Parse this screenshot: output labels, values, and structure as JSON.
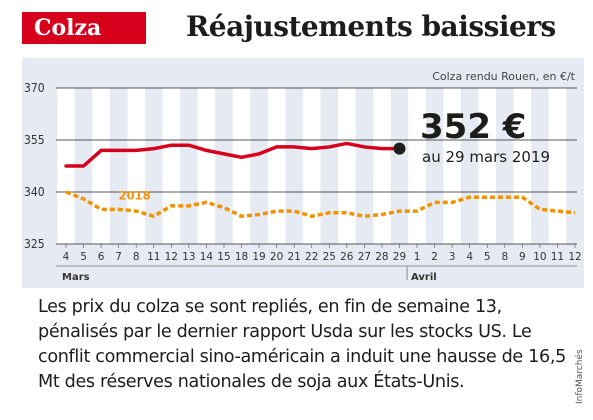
{
  "header": {
    "tag": "Colza",
    "title": "Réajustements baissiers"
  },
  "caption": "Les prix du colza se sont repliés, en fin de semaine 13, pénalisés par le dernier rapport Usda sur les stocks US. Le conflit commercial sino-américain a induit une hausse de 16,5 Mt des réserves nationales de soja aux États-Unis.",
  "credit": "InfoMarchés",
  "colors": {
    "accent": "#d6001c",
    "series_2019": "#d6001c",
    "series_2018": "#f39200",
    "panel": "#e6eaf2",
    "stripe": "#ffffff"
  },
  "chart_data": {
    "type": "line",
    "unit_label": "Colza rendu Rouen, en €/t",
    "categories": [
      "4",
      "5",
      "6",
      "7",
      "8",
      "11",
      "12",
      "13",
      "14",
      "15",
      "18",
      "19",
      "20",
      "21",
      "22",
      "25",
      "26",
      "27",
      "28",
      "29",
      "1",
      "2",
      "3",
      "4",
      "5",
      "8",
      "9",
      "10",
      "11",
      "12"
    ],
    "months": [
      {
        "label": "Mars",
        "start_index": 0
      },
      {
        "label": "Avril",
        "start_index": 20
      }
    ],
    "yticks": [
      "370",
      "355",
      "340",
      "325"
    ],
    "ylim": [
      325,
      370
    ],
    "grid": true,
    "series": [
      {
        "name": "2019",
        "style": "solid",
        "values": [
          347.5,
          347.5,
          352,
          352,
          352,
          352.5,
          353.5,
          353.5,
          352,
          351,
          350,
          351,
          353,
          353,
          352.5,
          353,
          354,
          353,
          352.5,
          352.5,
          null,
          null,
          null,
          null,
          null,
          null,
          null,
          null,
          null,
          null
        ]
      },
      {
        "name": "2018",
        "style": "dashed",
        "values": [
          340,
          338,
          335,
          335,
          334.5,
          333,
          336,
          336,
          337,
          335.5,
          333,
          333.5,
          334.5,
          334.5,
          333,
          334,
          334,
          333,
          333.5,
          334.5,
          334.5,
          337,
          337,
          338.5,
          338.5,
          338.5,
          338.5,
          335,
          334.5,
          334
        ]
      }
    ],
    "annotation": {
      "value": "352 €",
      "date": "au 29 mars 2019"
    }
  }
}
